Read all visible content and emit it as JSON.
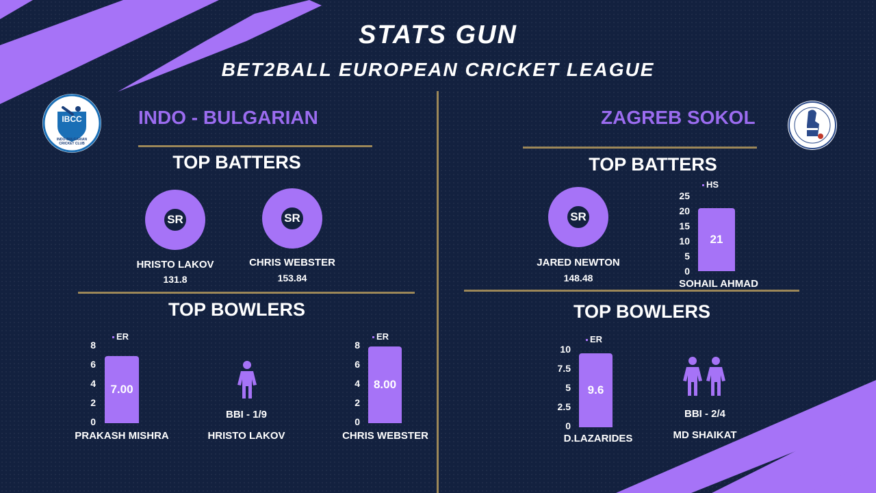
{
  "header": {
    "title": "STATS GUN",
    "subtitle": "BET2BALL EUROPEAN CRICKET LEAGUE"
  },
  "colors": {
    "background": "#13213f",
    "accent": "#a673f7",
    "team_text": "#9b6cf0",
    "divider": "#9c8758"
  },
  "teams": [
    {
      "name": "INDO - BULGARIAN",
      "logo": {
        "icon": "ibcc-logo",
        "abbr": "IBCC",
        "text": "INDO-BULGARIAN CRICKET CLUB"
      },
      "top_batters_title": "TOP BATTERS",
      "batters": [
        {
          "metric": "SR",
          "name": "HRISTO LAKOV",
          "value": "131.8"
        },
        {
          "metric": "SR",
          "name": "CHRIS WEBSTER",
          "value": "153.84"
        }
      ],
      "top_bowlers_title": "TOP BOWLERS",
      "bowlers": [
        {
          "chart": {
            "legend": "ER",
            "value": 7,
            "label": "7.00",
            "ticks": [
              "8",
              "6",
              "4",
              "2",
              "0"
            ],
            "max": 8
          },
          "name": "PRAKASH MISHRA"
        },
        {
          "icon": "person-icon",
          "count": 1,
          "bbi": "BBI - 1/9",
          "name": "HRISTO LAKOV"
        },
        {
          "chart": {
            "legend": "ER",
            "value": 8,
            "label": "8.00",
            "ticks": [
              "8",
              "6",
              "4",
              "2",
              "0"
            ],
            "max": 8
          },
          "name": "CHRIS WEBSTER"
        }
      ]
    },
    {
      "name": "ZAGREB SOKOL",
      "logo": {
        "icon": "zagreb-sokol-logo"
      },
      "top_batters_title": "TOP BATTERS",
      "batters": [
        {
          "metric": "SR",
          "name": "JARED NEWTON",
          "value": "148.48"
        },
        {
          "chart": {
            "legend": "HS",
            "value": 21,
            "label": "21",
            "ticks": [
              "25",
              "20",
              "15",
              "10",
              "5",
              "0"
            ],
            "max": 25
          },
          "name": "SOHAIL AHMAD"
        }
      ],
      "top_bowlers_title": "TOP BOWLERS",
      "bowlers": [
        {
          "chart": {
            "legend": "ER",
            "value": 9.6,
            "label": "9.6",
            "ticks": [
              "10",
              "7.5",
              "5",
              "2.5",
              "0"
            ],
            "max": 10
          },
          "name": "D.LAZARIDES"
        },
        {
          "icon": "person-icon",
          "count": 2,
          "bbi": "BBI - 2/4",
          "name": "MD SHAIKAT"
        }
      ]
    }
  ]
}
